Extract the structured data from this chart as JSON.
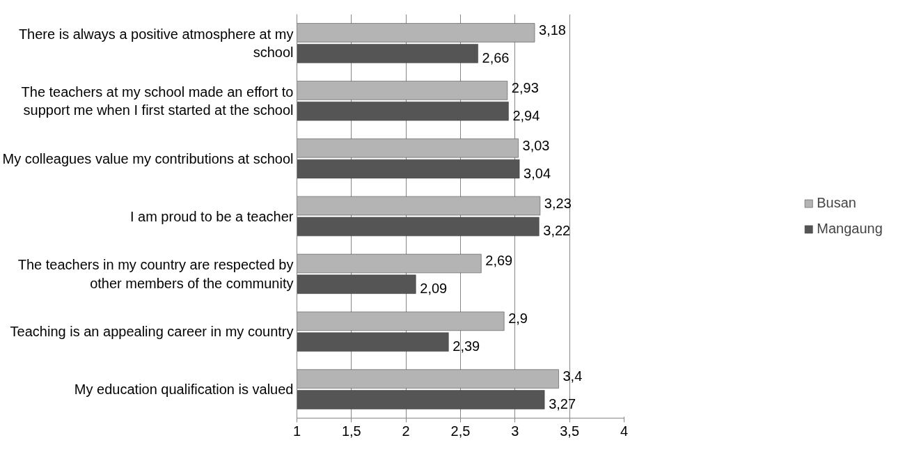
{
  "chart_data": {
    "type": "bar",
    "orientation": "horizontal",
    "categories": [
      "There is always a positive atmosphere at my school",
      "The teachers at my school made an effort to support me when I first started at the school",
      "My colleagues value my contributions at school",
      "I am proud to be a teacher",
      "The teachers in my country are respected by other members of the community",
      "Teaching is an appealing career in my country",
      "My education qualification is valued"
    ],
    "series": [
      {
        "name": "Busan",
        "color": "#b4b4b4",
        "values": [
          3.18,
          2.93,
          3.03,
          3.23,
          2.69,
          2.9,
          3.4
        ],
        "value_labels": [
          "3,18",
          "2,93",
          "3,03",
          "3,23",
          "2,69",
          "2,9",
          "3,4"
        ]
      },
      {
        "name": "Mangaung",
        "color": "#555555",
        "values": [
          2.66,
          2.94,
          3.04,
          3.22,
          2.09,
          2.39,
          3.27
        ],
        "value_labels": [
          "2,66",
          "2,94",
          "3,04",
          "3,22",
          "2,09",
          "2,39",
          "3,27"
        ]
      }
    ],
    "xlim": [
      1,
      4
    ],
    "xticks": [
      1,
      {
        "value": 1.5,
        "label": "1,5"
      },
      2,
      {
        "value": 2.5,
        "label": "2,5"
      },
      3,
      {
        "value": 3.5,
        "label": "3,5"
      },
      4
    ],
    "grid": "x",
    "legend": "right"
  }
}
